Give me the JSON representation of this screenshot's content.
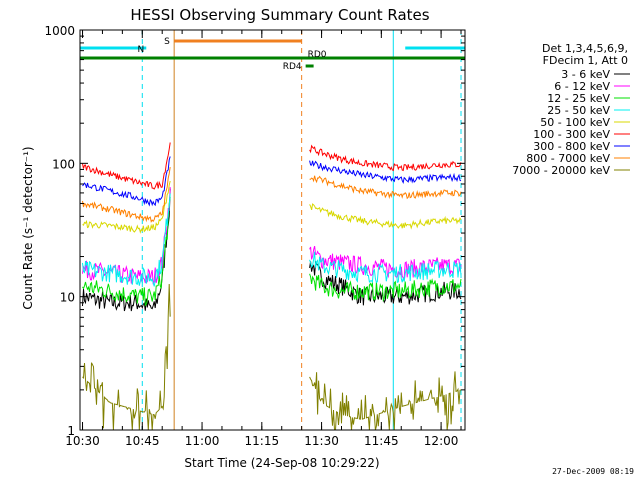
{
  "chart_data": {
    "type": "line",
    "title": "HESSI Observing Summary Count Rates",
    "xlabel": "Start Time (24-Sep-08 10:29:22)",
    "ylabel": "Count Rate (s⁻¹ detector⁻¹)",
    "y_scale": "log",
    "ylim": [
      1,
      1000
    ],
    "xlim": [
      "10:29:22",
      "12:06:00"
    ],
    "x_ticks": [
      "10:30",
      "10:45",
      "11:00",
      "11:15",
      "11:30",
      "11:45",
      "12:00"
    ],
    "y_ticks": [
      "1",
      "10",
      "100",
      "1000"
    ],
    "legend_header": [
      "Det 1,3,4,5,6,9,",
      "FDecim 1, Att 0"
    ],
    "legend_position": "right",
    "flag_bars": [
      {
        "label": "N",
        "color": "#00e0f0",
        "segments": [
          [
            "10:29:22",
            "10:46:00"
          ],
          [
            "11:51:00",
            "12:06:00"
          ]
        ]
      },
      {
        "label": "S",
        "color": "#f08020",
        "segments": [
          [
            "10:53:00",
            "11:25:00"
          ]
        ]
      },
      {
        "label": "RD0",
        "color": "#008000",
        "segments": [
          [
            "10:29:22",
            "12:06:00"
          ]
        ]
      },
      {
        "label": "RD4",
        "color": "#008000",
        "segments": [
          [
            "11:26:00",
            "11:28:00"
          ]
        ]
      }
    ],
    "series": [
      {
        "name": "3 - 6 keV",
        "color": "#000000",
        "before": [
          [
            "10:30",
            10
          ],
          [
            "10:37",
            9
          ],
          [
            "10:44",
            9
          ],
          [
            "10:48",
            8
          ],
          [
            "10:50",
            13
          ],
          [
            "10:52",
            55
          ]
        ],
        "after": [
          [
            "11:27",
            18
          ],
          [
            "11:30",
            14
          ],
          [
            "11:35",
            12
          ],
          [
            "11:40",
            10
          ],
          [
            "11:50",
            10
          ],
          [
            "12:00",
            11
          ],
          [
            "12:05",
            11
          ]
        ]
      },
      {
        "name": "6 - 12 keV",
        "color": "#ff00ff",
        "before": [
          [
            "10:30",
            16
          ],
          [
            "10:37",
            15
          ],
          [
            "10:44",
            14
          ],
          [
            "10:48",
            14
          ],
          [
            "10:50",
            18
          ],
          [
            "10:52",
            60
          ]
        ],
        "after": [
          [
            "11:27",
            22
          ],
          [
            "11:30",
            19
          ],
          [
            "11:35",
            18
          ],
          [
            "11:40",
            17
          ],
          [
            "11:50",
            16
          ],
          [
            "12:00",
            17
          ],
          [
            "12:05",
            17
          ]
        ]
      },
      {
        "name": "12 - 25 keV",
        "color": "#00e000",
        "before": [
          [
            "10:30",
            12
          ],
          [
            "10:37",
            11
          ],
          [
            "10:44",
            10
          ],
          [
            "10:48",
            10
          ],
          [
            "10:50",
            14
          ],
          [
            "10:52",
            50
          ]
        ],
        "after": [
          [
            "11:27",
            14
          ],
          [
            "11:30",
            12
          ],
          [
            "11:35",
            11
          ],
          [
            "11:40",
            11
          ],
          [
            "11:50",
            11
          ],
          [
            "12:00",
            12
          ],
          [
            "12:05",
            12
          ]
        ]
      },
      {
        "name": "25 - 50 keV",
        "color": "#00f0f0",
        "before": [
          [
            "10:30",
            16
          ],
          [
            "10:37",
            15
          ],
          [
            "10:44",
            14
          ],
          [
            "10:48",
            14
          ],
          [
            "10:50",
            18
          ],
          [
            "10:52",
            62
          ]
        ],
        "after": [
          [
            "11:27",
            20
          ],
          [
            "11:30",
            17
          ],
          [
            "11:35",
            16
          ],
          [
            "11:40",
            15
          ],
          [
            "11:50",
            15
          ],
          [
            "12:00",
            16
          ],
          [
            "12:05",
            16
          ]
        ]
      },
      {
        "name": "50 - 100 keV",
        "color": "#d8d800",
        "before": [
          [
            "10:30",
            35
          ],
          [
            "10:37",
            34
          ],
          [
            "10:44",
            32
          ],
          [
            "10:48",
            33
          ],
          [
            "10:50",
            38
          ],
          [
            "10:52",
            75
          ]
        ],
        "after": [
          [
            "11:27",
            48
          ],
          [
            "11:30",
            44
          ],
          [
            "11:35",
            40
          ],
          [
            "11:40",
            37
          ],
          [
            "11:50",
            34
          ],
          [
            "12:00",
            37
          ],
          [
            "12:05",
            37
          ]
        ]
      },
      {
        "name": "100 - 300 keV",
        "color": "#ff0000",
        "before": [
          [
            "10:30",
            95
          ],
          [
            "10:37",
            82
          ],
          [
            "10:44",
            72
          ],
          [
            "10:48",
            67
          ],
          [
            "10:50",
            70
          ],
          [
            "10:52",
            140
          ]
        ],
        "after": [
          [
            "11:27",
            130
          ],
          [
            "11:30",
            120
          ],
          [
            "11:35",
            108
          ],
          [
            "11:40",
            100
          ],
          [
            "11:50",
            92
          ],
          [
            "12:00",
            98
          ],
          [
            "12:05",
            98
          ]
        ]
      },
      {
        "name": "300 - 800 keV",
        "color": "#0000ff",
        "before": [
          [
            "10:30",
            70
          ],
          [
            "10:37",
            62
          ],
          [
            "10:44",
            55
          ],
          [
            "10:48",
            50
          ],
          [
            "10:50",
            55
          ],
          [
            "10:52",
            110
          ]
        ],
        "after": [
          [
            "11:27",
            100
          ],
          [
            "11:30",
            95
          ],
          [
            "11:35",
            88
          ],
          [
            "11:40",
            82
          ],
          [
            "11:50",
            75
          ],
          [
            "12:00",
            78
          ],
          [
            "12:05",
            78
          ]
        ]
      },
      {
        "name": "800 - 7000 keV",
        "color": "#ff8000",
        "before": [
          [
            "10:30",
            50
          ],
          [
            "10:37",
            45
          ],
          [
            "10:44",
            40
          ],
          [
            "10:48",
            38
          ],
          [
            "10:50",
            42
          ],
          [
            "10:52",
            90
          ]
        ],
        "after": [
          [
            "11:27",
            80
          ],
          [
            "11:30",
            75
          ],
          [
            "11:35",
            68
          ],
          [
            "11:40",
            62
          ],
          [
            "11:50",
            57
          ],
          [
            "12:00",
            60
          ],
          [
            "12:05",
            60
          ]
        ]
      },
      {
        "name": "7000 - 20000 keV",
        "color": "#808000",
        "before": [
          [
            "10:30",
            2.5
          ],
          [
            "10:37",
            1.6
          ],
          [
            "10:44",
            1.4
          ],
          [
            "10:48",
            1.3
          ],
          [
            "10:50",
            1.5
          ],
          [
            "10:52",
            12
          ]
        ],
        "after": [
          [
            "11:27",
            2.5
          ],
          [
            "11:30",
            1.6
          ],
          [
            "11:35",
            1.3
          ],
          [
            "11:40",
            1.2
          ],
          [
            "11:50",
            1.5
          ],
          [
            "12:00",
            1.8
          ],
          [
            "12:05",
            2
          ]
        ]
      }
    ],
    "markers": [
      {
        "time": "10:45",
        "color": "#00e0f0",
        "style": "dashed"
      },
      {
        "time": "10:53",
        "color": "#d08020",
        "style": "solid"
      },
      {
        "time": "11:25",
        "color": "#f08020",
        "style": "dashed"
      },
      {
        "time": "11:48",
        "color": "#00e0f0",
        "style": "solid"
      },
      {
        "time": "12:05",
        "color": "#00e0f0",
        "style": "dashed"
      }
    ]
  },
  "footer": "27-Dec-2009 08:19"
}
